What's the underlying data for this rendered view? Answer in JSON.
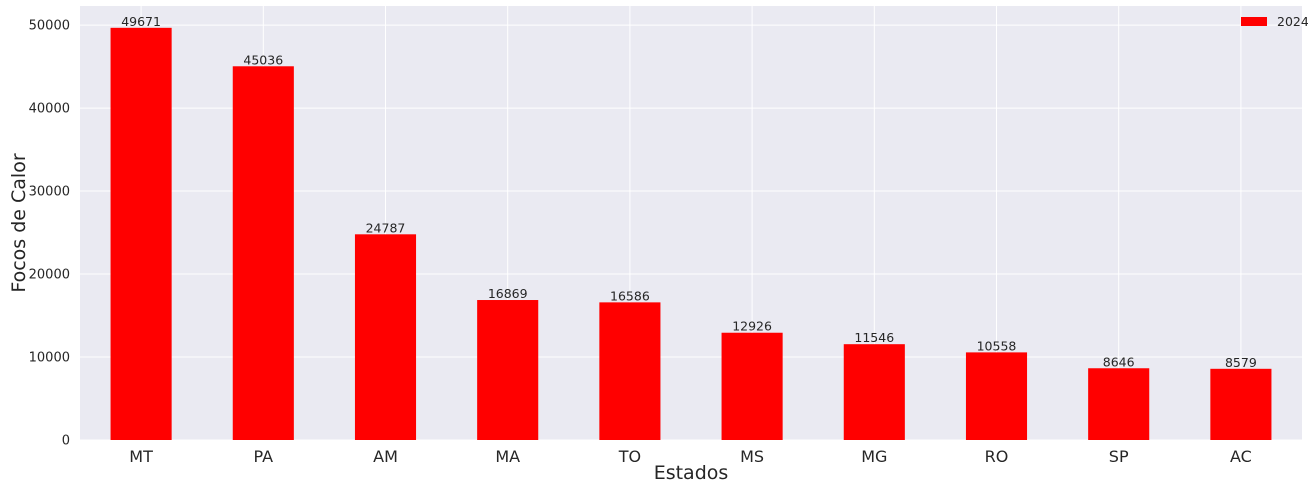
{
  "chart_data": {
    "type": "bar",
    "categories": [
      "MT",
      "PA",
      "AM",
      "MA",
      "TO",
      "MS",
      "MG",
      "RO",
      "SP",
      "AC"
    ],
    "series": [
      {
        "name": "2024",
        "values": [
          49671,
          45036,
          24787,
          16869,
          16586,
          12926,
          11546,
          10558,
          8646,
          8579
        ],
        "color": "#ff0000"
      }
    ],
    "xlabel": "Estados",
    "ylabel": "Focos de Calor",
    "ylim": [
      0,
      52300
    ],
    "yticks": [
      0,
      10000,
      20000,
      30000,
      40000,
      50000
    ],
    "grid": true,
    "legend_position": "top-right",
    "background_color": "#eaeaf2",
    "grid_color": "#ffffff"
  }
}
